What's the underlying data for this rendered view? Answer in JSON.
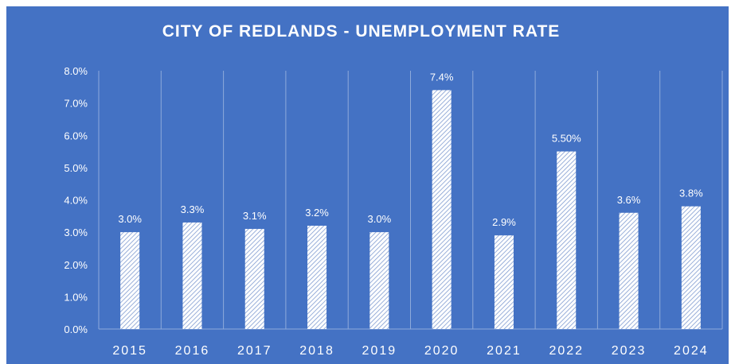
{
  "colors": {
    "background": "#4472c4",
    "text": "#ffffff",
    "grid": "#8eaadb",
    "bar_pattern": "white-diagonal-hatch"
  },
  "chart_data": {
    "type": "bar",
    "title": "CITY OF REDLANDS - UNEMPLOYMENT RATE",
    "categories": [
      "2015",
      "2016",
      "2017",
      "2018",
      "2019",
      "2020",
      "2021",
      "2022",
      "2023",
      "2024"
    ],
    "values": [
      3.0,
      3.3,
      3.1,
      3.2,
      3.0,
      7.4,
      2.9,
      5.5,
      3.6,
      3.8
    ],
    "data_labels": [
      "3.0%",
      "3.3%",
      "3.1%",
      "3.2%",
      "3.0%",
      "7.4%",
      "2.9%",
      "5.50%",
      "3.6%",
      "3.8%"
    ],
    "y_ticks": [
      "0.0%",
      "1.0%",
      "2.0%",
      "3.0%",
      "4.0%",
      "5.0%",
      "6.0%",
      "7.0%",
      "8.0%"
    ],
    "ylim": [
      0,
      8
    ],
    "xlabel": "",
    "ylabel": "",
    "grid": "vertical lines between categories",
    "legend": "none"
  }
}
